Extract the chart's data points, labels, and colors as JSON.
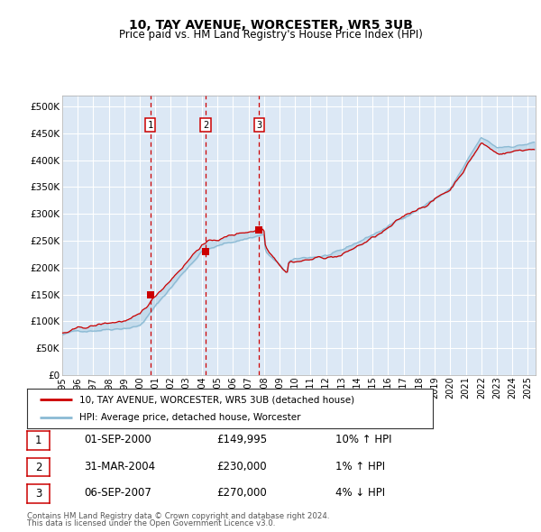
{
  "title": "10, TAY AVENUE, WORCESTER, WR5 3UB",
  "subtitle": "Price paid vs. HM Land Registry's House Price Index (HPI)",
  "ylabel_ticks": [
    "£0",
    "£50K",
    "£100K",
    "£150K",
    "£200K",
    "£250K",
    "£300K",
    "£350K",
    "£400K",
    "£450K",
    "£500K"
  ],
  "ytick_values": [
    0,
    50000,
    100000,
    150000,
    200000,
    250000,
    300000,
    350000,
    400000,
    450000,
    500000
  ],
  "ylim": [
    0,
    520000
  ],
  "xlim_start": 1995.0,
  "xlim_end": 2025.5,
  "xtick_years": [
    1995,
    1996,
    1997,
    1998,
    1999,
    2000,
    2001,
    2002,
    2003,
    2004,
    2005,
    2006,
    2007,
    2008,
    2009,
    2010,
    2011,
    2012,
    2013,
    2014,
    2015,
    2016,
    2017,
    2018,
    2019,
    2020,
    2021,
    2022,
    2023,
    2024,
    2025
  ],
  "bg_color": "#dce8f5",
  "grid_color": "#ffffff",
  "hpi_color": "#8bbad4",
  "price_color": "#cc0000",
  "sale_vline_color": "#cc0000",
  "sale_box_color": "#cc0000",
  "legend_line1": "10, TAY AVENUE, WORCESTER, WR5 3UB (detached house)",
  "legend_line2": "HPI: Average price, detached house, Worcester",
  "sales": [
    {
      "num": 1,
      "date": "01-SEP-2000",
      "price": "£149,995",
      "hpi_pct": "10%",
      "hpi_dir": "↑",
      "year": 2000.67
    },
    {
      "num": 2,
      "date": "31-MAR-2004",
      "price": "£230,000",
      "hpi_pct": "1%",
      "hpi_dir": "↑",
      "year": 2004.25
    },
    {
      "num": 3,
      "date": "06-SEP-2007",
      "price": "£270,000",
      "hpi_pct": "4%",
      "hpi_dir": "↓",
      "year": 2007.68
    }
  ],
  "sale_prices": [
    149995,
    230000,
    270000
  ],
  "footnote1": "Contains HM Land Registry data © Crown copyright and database right 2024.",
  "footnote2": "This data is licensed under the Open Government Licence v3.0."
}
